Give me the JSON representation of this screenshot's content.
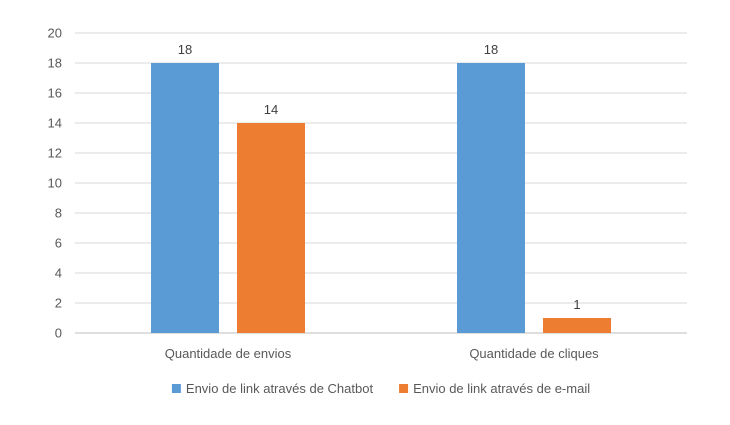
{
  "chart_data": {
    "type": "bar",
    "title": "",
    "xlabel": "",
    "ylabel": "",
    "categories": [
      "Quantidade de envios",
      "Quantidade de cliques"
    ],
    "series": [
      {
        "name": "Envio de link através de Chatbot",
        "values": [
          18,
          18
        ],
        "color": "#5B9BD5"
      },
      {
        "name": "Envio de link através de e-mail",
        "values": [
          14,
          1
        ],
        "color": "#ED7D31"
      }
    ],
    "ylim": [
      0,
      20
    ],
    "yticks": [
      0,
      2,
      4,
      6,
      8,
      10,
      12,
      14,
      16,
      18,
      20
    ],
    "grid": true,
    "data_labels": true,
    "legend_position": "bottom"
  }
}
